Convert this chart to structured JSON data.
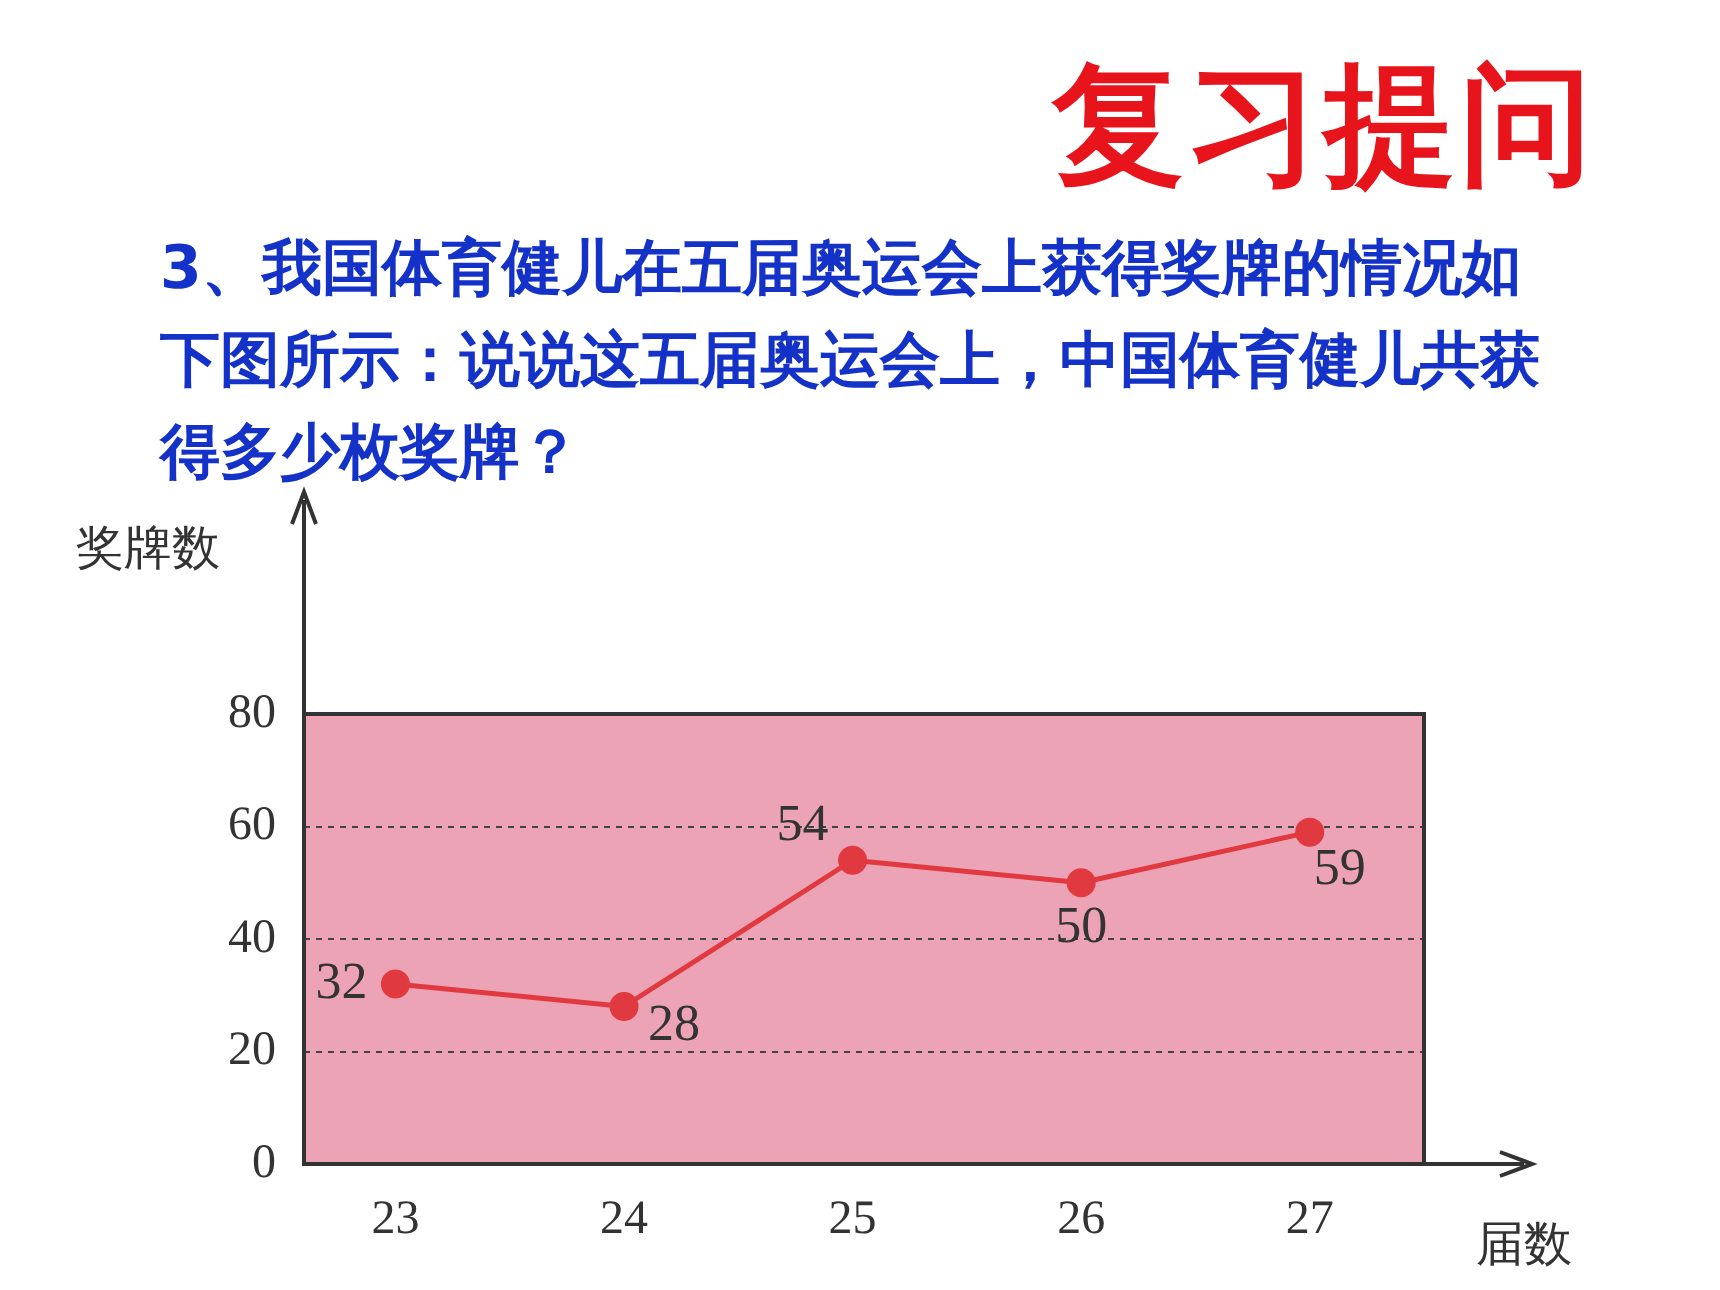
{
  "chart_data": {
    "type": "line",
    "title": "复习提问",
    "subtitle": "3、我国体育健儿在五届奥运会上获得奖牌的情况如下图所示：说说这五届奥运会上，中国体育健儿共获得多少枚奖牌？",
    "xlabel": "届数",
    "ylabel": "奖牌数",
    "x": [
      23,
      24,
      25,
      26,
      27
    ],
    "xlim": [
      22.6,
      27.5
    ],
    "xticks": [
      23,
      24,
      25,
      26,
      27
    ],
    "series": [
      {
        "color": "#e0393f",
        "values": [
          32,
          28,
          54,
          50,
          59
        ]
      }
    ],
    "ylim": [
      0,
      80
    ],
    "yticks": [
      0,
      20,
      40,
      60,
      80
    ],
    "grid": "y",
    "marker": "circle",
    "line_style": "solid",
    "data_labels": true,
    "legend": false
  }
}
